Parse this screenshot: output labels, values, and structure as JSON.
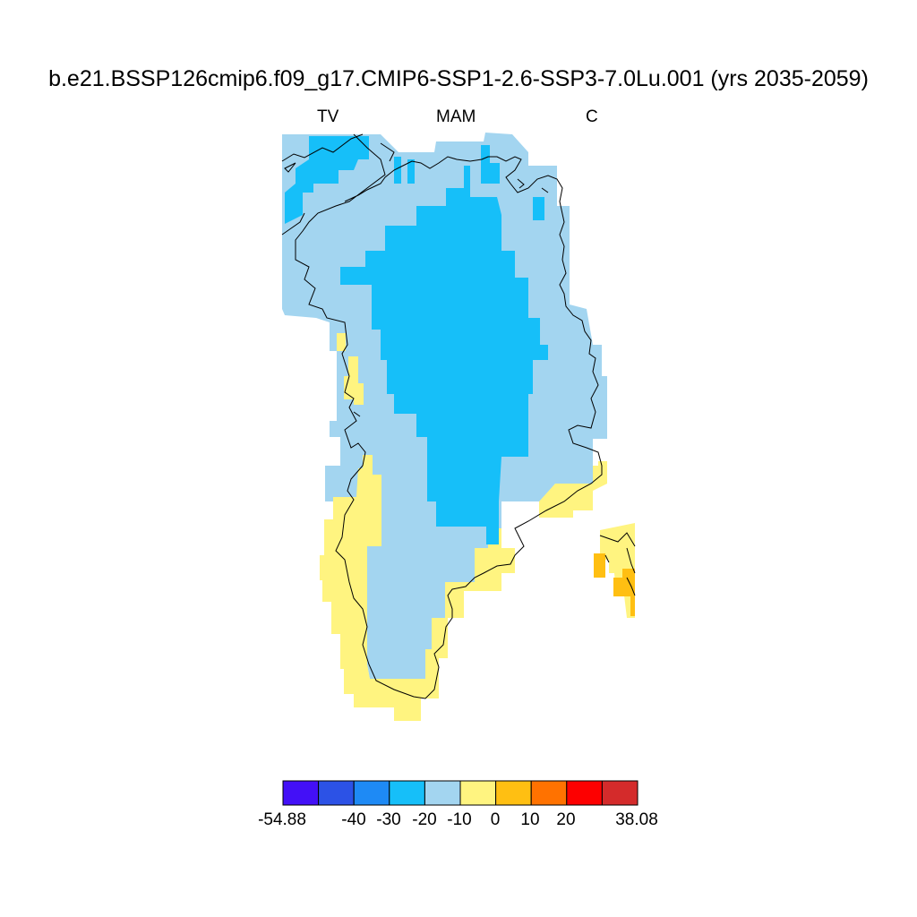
{
  "title": "b.e21.BSSP126cmip6.f09_g17.CMIP6-SSP1-2.6-SSP3-7.0Lu.001 (yrs 2035-2059)",
  "subtitle_left": "TV",
  "subtitle_center": "MAM",
  "subtitle_right": "C",
  "colorbar": {
    "colors": [
      "#4310f7",
      "#2c52e6",
      "#1e8af5",
      "#16bff9",
      "#a3d5f0",
      "#fff480",
      "#ffbf12",
      "#ff7200",
      "#fd0000",
      "#d42b2b"
    ],
    "labels": [
      "-54.88",
      "-40",
      "-30",
      "-20",
      "-10",
      "0",
      "10",
      "20",
      "38.08"
    ]
  },
  "legend": {
    "v_-20_-10": "#16bff9",
    "v_-10_0": "#a3d5f0",
    "v_0_10": "#fff480",
    "v_10_20": "#ffbf12"
  }
}
